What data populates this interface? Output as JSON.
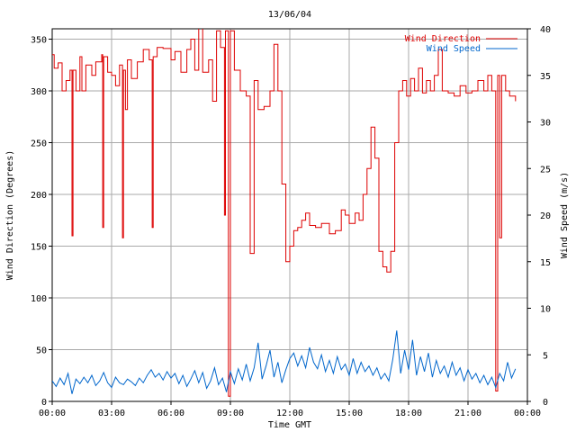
{
  "chart_data": {
    "type": "line",
    "title": "13/06/04",
    "xlabel": "Time GMT",
    "ylabel_left": "Wind Direction (Degrees)",
    "ylabel_right": "Wind Speed (m/s)",
    "x_ticks": [
      "00:00",
      "03:00",
      "06:00",
      "09:00",
      "12:00",
      "15:00",
      "18:00",
      "21:00",
      "00:00"
    ],
    "xlim_hours": [
      0,
      24
    ],
    "y_left_ticks": [
      0,
      50,
      100,
      150,
      200,
      250,
      300,
      350
    ],
    "ylim_left": [
      0,
      360
    ],
    "y_right_ticks": [
      0,
      5,
      10,
      15,
      20,
      25,
      30,
      35,
      40
    ],
    "ylim_right": [
      0,
      40
    ],
    "grid": true,
    "legend_position": "top-right",
    "colors": {
      "direction": "#dd0000",
      "speed": "#0066cc",
      "grid": "#aaaaaa"
    },
    "series": [
      {
        "name": "Wind Direction",
        "axis": "left",
        "points": [
          [
            0,
            335
          ],
          [
            0.1,
            322
          ],
          [
            0.3,
            327
          ],
          [
            0.5,
            300
          ],
          [
            0.7,
            310
          ],
          [
            0.9,
            320
          ],
          [
            1.0,
            160
          ],
          [
            1.05,
            320
          ],
          [
            1.2,
            300
          ],
          [
            1.4,
            333
          ],
          [
            1.5,
            300
          ],
          [
            1.7,
            325
          ],
          [
            2.0,
            315
          ],
          [
            2.2,
            328
          ],
          [
            2.5,
            335
          ],
          [
            2.55,
            168
          ],
          [
            2.6,
            333
          ],
          [
            2.8,
            318
          ],
          [
            3.0,
            315
          ],
          [
            3.2,
            305
          ],
          [
            3.4,
            325
          ],
          [
            3.55,
            158
          ],
          [
            3.6,
            320
          ],
          [
            3.7,
            282
          ],
          [
            3.8,
            330
          ],
          [
            4.0,
            312
          ],
          [
            4.3,
            328
          ],
          [
            4.6,
            340
          ],
          [
            4.9,
            330
          ],
          [
            5.05,
            168
          ],
          [
            5.1,
            333
          ],
          [
            5.3,
            342
          ],
          [
            5.6,
            341
          ],
          [
            6.0,
            330
          ],
          [
            6.2,
            338
          ],
          [
            6.5,
            318
          ],
          [
            6.8,
            340
          ],
          [
            7.0,
            350
          ],
          [
            7.2,
            320
          ],
          [
            7.4,
            362
          ],
          [
            7.6,
            318
          ],
          [
            7.9,
            330
          ],
          [
            8.1,
            290
          ],
          [
            8.3,
            358
          ],
          [
            8.5,
            342
          ],
          [
            8.7,
            180
          ],
          [
            8.75,
            358
          ],
          [
            8.9,
            5
          ],
          [
            9.0,
            358
          ],
          [
            9.2,
            320
          ],
          [
            9.5,
            300
          ],
          [
            9.8,
            295
          ],
          [
            10.0,
            143
          ],
          [
            10.2,
            310
          ],
          [
            10.4,
            282
          ],
          [
            10.7,
            285
          ],
          [
            11.0,
            300
          ],
          [
            11.2,
            345
          ],
          [
            11.4,
            300
          ],
          [
            11.6,
            210
          ],
          [
            11.8,
            135
          ],
          [
            12.0,
            150
          ],
          [
            12.2,
            165
          ],
          [
            12.4,
            168
          ],
          [
            12.6,
            175
          ],
          [
            12.8,
            182
          ],
          [
            13.0,
            170
          ],
          [
            13.3,
            168
          ],
          [
            13.6,
            172
          ],
          [
            14.0,
            162
          ],
          [
            14.3,
            165
          ],
          [
            14.6,
            185
          ],
          [
            14.8,
            180
          ],
          [
            15.0,
            172
          ],
          [
            15.3,
            182
          ],
          [
            15.5,
            175
          ],
          [
            15.7,
            200
          ],
          [
            15.9,
            225
          ],
          [
            16.1,
            265
          ],
          [
            16.3,
            235
          ],
          [
            16.5,
            145
          ],
          [
            16.7,
            130
          ],
          [
            16.9,
            125
          ],
          [
            17.1,
            145
          ],
          [
            17.3,
            250
          ],
          [
            17.5,
            300
          ],
          [
            17.7,
            310
          ],
          [
            17.9,
            295
          ],
          [
            18.1,
            312
          ],
          [
            18.3,
            300
          ],
          [
            18.5,
            322
          ],
          [
            18.7,
            298
          ],
          [
            18.9,
            310
          ],
          [
            19.1,
            300
          ],
          [
            19.3,
            315
          ],
          [
            19.5,
            340
          ],
          [
            19.7,
            300
          ],
          [
            20.0,
            298
          ],
          [
            20.3,
            295
          ],
          [
            20.6,
            305
          ],
          [
            20.9,
            298
          ],
          [
            21.2,
            300
          ],
          [
            21.5,
            310
          ],
          [
            21.8,
            300
          ],
          [
            22.0,
            315
          ],
          [
            22.2,
            300
          ],
          [
            22.4,
            10
          ],
          [
            22.5,
            315
          ],
          [
            22.6,
            158
          ],
          [
            22.7,
            315
          ],
          [
            22.9,
            300
          ],
          [
            23.1,
            295
          ],
          [
            23.4,
            290
          ]
        ]
      },
      {
        "name": "Wind Speed",
        "axis": "right",
        "points": [
          [
            0,
            2.2
          ],
          [
            0.2,
            1.6
          ],
          [
            0.4,
            2.5
          ],
          [
            0.6,
            1.8
          ],
          [
            0.8,
            3.0
          ],
          [
            1.0,
            0.8
          ],
          [
            1.2,
            2.4
          ],
          [
            1.4,
            1.9
          ],
          [
            1.6,
            2.6
          ],
          [
            1.8,
            2.0
          ],
          [
            2.0,
            2.8
          ],
          [
            2.2,
            1.7
          ],
          [
            2.4,
            2.2
          ],
          [
            2.6,
            3.1
          ],
          [
            2.8,
            2.0
          ],
          [
            3.0,
            1.5
          ],
          [
            3.2,
            2.6
          ],
          [
            3.4,
            2.0
          ],
          [
            3.6,
            1.8
          ],
          [
            3.8,
            2.4
          ],
          [
            4.0,
            2.1
          ],
          [
            4.2,
            1.7
          ],
          [
            4.4,
            2.5
          ],
          [
            4.6,
            2.0
          ],
          [
            4.8,
            2.8
          ],
          [
            5.0,
            3.4
          ],
          [
            5.2,
            2.6
          ],
          [
            5.4,
            3.0
          ],
          [
            5.6,
            2.3
          ],
          [
            5.8,
            3.2
          ],
          [
            6.0,
            2.5
          ],
          [
            6.2,
            3.0
          ],
          [
            6.4,
            1.9
          ],
          [
            6.6,
            2.8
          ],
          [
            6.8,
            1.6
          ],
          [
            7.0,
            2.4
          ],
          [
            7.2,
            3.3
          ],
          [
            7.4,
            2.0
          ],
          [
            7.6,
            3.1
          ],
          [
            7.8,
            1.4
          ],
          [
            8.0,
            2.2
          ],
          [
            8.2,
            3.6
          ],
          [
            8.4,
            1.8
          ],
          [
            8.6,
            2.5
          ],
          [
            8.8,
            1.0
          ],
          [
            9.0,
            3.2
          ],
          [
            9.2,
            1.9
          ],
          [
            9.4,
            3.5
          ],
          [
            9.6,
            2.3
          ],
          [
            9.8,
            4.0
          ],
          [
            10.0,
            2.2
          ],
          [
            10.2,
            3.6
          ],
          [
            10.4,
            6.3
          ],
          [
            10.6,
            2.4
          ],
          [
            10.8,
            3.8
          ],
          [
            11.0,
            5.5
          ],
          [
            11.2,
            2.6
          ],
          [
            11.4,
            4.2
          ],
          [
            11.6,
            2.0
          ],
          [
            11.8,
            3.4
          ],
          [
            12.0,
            4.6
          ],
          [
            12.2,
            5.2
          ],
          [
            12.4,
            3.8
          ],
          [
            12.6,
            4.9
          ],
          [
            12.8,
            3.6
          ],
          [
            13.0,
            5.8
          ],
          [
            13.2,
            4.2
          ],
          [
            13.4,
            3.5
          ],
          [
            13.6,
            5.0
          ],
          [
            13.8,
            3.2
          ],
          [
            14.0,
            4.4
          ],
          [
            14.2,
            3.0
          ],
          [
            14.4,
            4.8
          ],
          [
            14.6,
            3.4
          ],
          [
            14.8,
            4.0
          ],
          [
            15.0,
            2.8
          ],
          [
            15.2,
            4.6
          ],
          [
            15.4,
            3.0
          ],
          [
            15.6,
            4.2
          ],
          [
            15.8,
            3.2
          ],
          [
            16.0,
            3.8
          ],
          [
            16.2,
            2.8
          ],
          [
            16.4,
            3.6
          ],
          [
            16.6,
            2.4
          ],
          [
            16.8,
            3.0
          ],
          [
            17.0,
            2.2
          ],
          [
            17.2,
            4.5
          ],
          [
            17.4,
            7.6
          ],
          [
            17.6,
            3.0
          ],
          [
            17.8,
            5.5
          ],
          [
            18.0,
            3.4
          ],
          [
            18.2,
            6.6
          ],
          [
            18.4,
            2.8
          ],
          [
            18.6,
            4.8
          ],
          [
            18.8,
            3.2
          ],
          [
            19.0,
            5.2
          ],
          [
            19.2,
            2.6
          ],
          [
            19.4,
            4.4
          ],
          [
            19.6,
            3.0
          ],
          [
            19.8,
            3.8
          ],
          [
            20.0,
            2.6
          ],
          [
            20.2,
            4.2
          ],
          [
            20.4,
            2.8
          ],
          [
            20.6,
            3.6
          ],
          [
            20.8,
            2.2
          ],
          [
            21.0,
            3.4
          ],
          [
            21.2,
            2.4
          ],
          [
            21.4,
            3.0
          ],
          [
            21.6,
            2.0
          ],
          [
            21.8,
            2.8
          ],
          [
            22.0,
            1.8
          ],
          [
            22.2,
            2.6
          ],
          [
            22.4,
            1.5
          ],
          [
            22.6,
            3.0
          ],
          [
            22.8,
            2.2
          ],
          [
            23.0,
            4.2
          ],
          [
            23.2,
            2.5
          ],
          [
            23.4,
            3.5
          ]
        ]
      }
    ]
  }
}
